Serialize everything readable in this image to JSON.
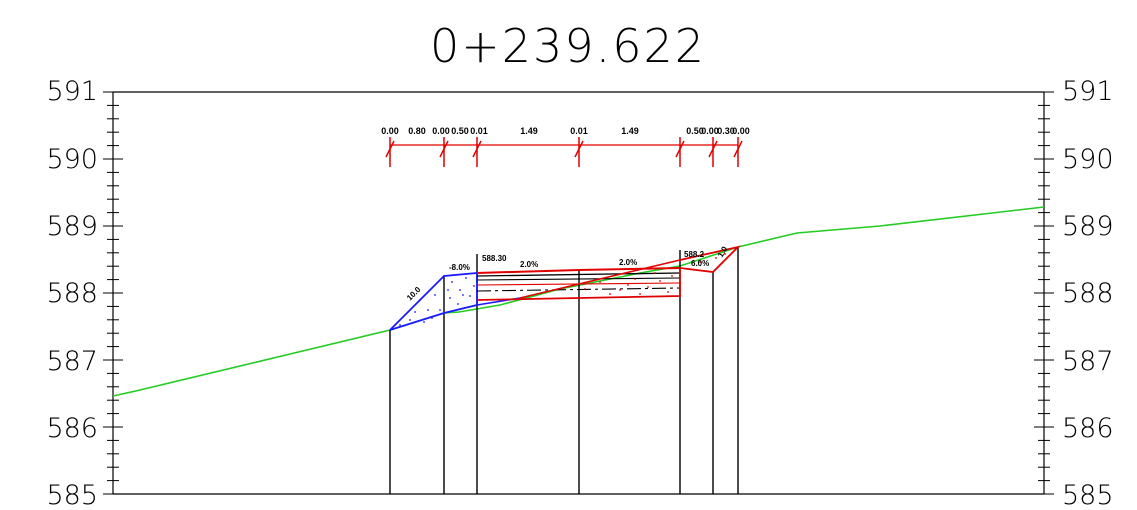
{
  "station": "0+239.622",
  "elevation_axis": {
    "labels": [
      "591",
      "590",
      "589",
      "588",
      "587",
      "586",
      "585"
    ]
  },
  "widths_dimension": {
    "labels": [
      "0.00",
      "0.80",
      "0.00",
      "0.50",
      "0.01",
      "1.49",
      "0.01",
      "1.49",
      "0.50",
      "0.00",
      "0.30",
      "0.00"
    ]
  },
  "annotations": {
    "left_elevation": "588.30",
    "right_elevation": "588.2",
    "left_slope": "-8.0%",
    "left_lane_slope": "2.0%",
    "right_lane_slope": "2.0%",
    "right_shoulder_slope": "6.0%",
    "left_talus": "10.0",
    "right_talus": "1.0"
  },
  "colors": {
    "ground_line": "#22cc22",
    "cut_fill_left": "#1a1aff",
    "pavement": "#e00000",
    "dimension": "#e00000",
    "structure": "#000000"
  }
}
